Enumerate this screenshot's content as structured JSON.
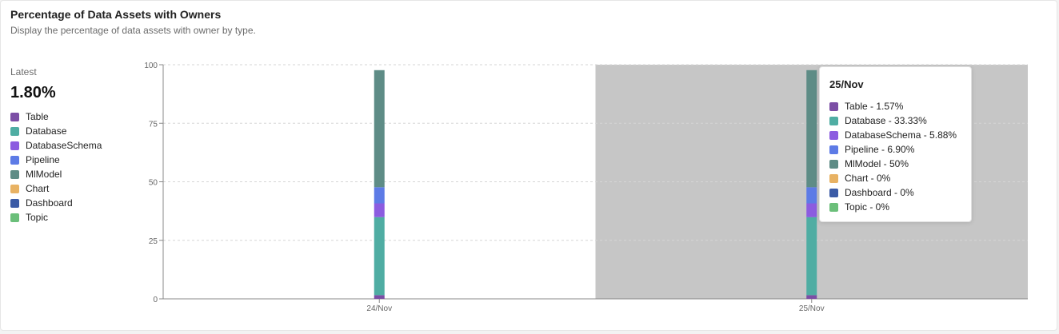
{
  "card": {
    "title": "Percentage of Data Assets with Owners",
    "subtitle": "Display the percentage of data assets with owner by type."
  },
  "summary": {
    "latest_label": "Latest",
    "latest_value": "1.80%"
  },
  "legend": [
    {
      "label": "Table",
      "color": "#7b4ea5"
    },
    {
      "label": "Database",
      "color": "#4fada3"
    },
    {
      "label": "DatabaseSchema",
      "color": "#8c5ce0"
    },
    {
      "label": "Pipeline",
      "color": "#5d7be6"
    },
    {
      "label": "MlModel",
      "color": "#5e8c86"
    },
    {
      "label": "Chart",
      "color": "#e8b263"
    },
    {
      "label": "Dashboard",
      "color": "#3b5ba6"
    },
    {
      "label": "Topic",
      "color": "#6bbf7a"
    }
  ],
  "tooltip": {
    "title": "25/Nov",
    "items": [
      {
        "text": "Table - 1.57%",
        "color": "#7b4ea5"
      },
      {
        "text": "Database - 33.33%",
        "color": "#4fada3"
      },
      {
        "text": "DatabaseSchema - 5.88%",
        "color": "#8c5ce0"
      },
      {
        "text": "Pipeline - 6.90%",
        "color": "#5d7be6"
      },
      {
        "text": "MlModel - 50%",
        "color": "#5e8c86"
      },
      {
        "text": "Chart - 0%",
        "color": "#e8b263"
      },
      {
        "text": "Dashboard - 0%",
        "color": "#3b5ba6"
      },
      {
        "text": "Topic - 0%",
        "color": "#6bbf7a"
      }
    ]
  },
  "chart_data": {
    "type": "bar",
    "stacked": true,
    "categories": [
      "24/Nov",
      "25/Nov"
    ],
    "ylim": [
      0,
      100
    ],
    "yticks": [
      0,
      25,
      50,
      75,
      100
    ],
    "grid": true,
    "highlighted_category": "25/Nov",
    "highlight_color": "#c6c6c6",
    "series": [
      {
        "name": "Table",
        "color": "#7b4ea5",
        "values": [
          1.57,
          1.57
        ]
      },
      {
        "name": "Database",
        "color": "#4fada3",
        "values": [
          33.33,
          33.33
        ]
      },
      {
        "name": "DatabaseSchema",
        "color": "#8c5ce0",
        "values": [
          5.88,
          5.88
        ]
      },
      {
        "name": "Pipeline",
        "color": "#5d7be6",
        "values": [
          6.9,
          6.9
        ]
      },
      {
        "name": "MlModel",
        "color": "#5e8c86",
        "values": [
          50,
          50
        ]
      },
      {
        "name": "Chart",
        "color": "#e8b263",
        "values": [
          0,
          0
        ]
      },
      {
        "name": "Dashboard",
        "color": "#3b5ba6",
        "values": [
          0,
          0
        ]
      },
      {
        "name": "Topic",
        "color": "#6bbf7a",
        "values": [
          0,
          0
        ]
      }
    ]
  }
}
